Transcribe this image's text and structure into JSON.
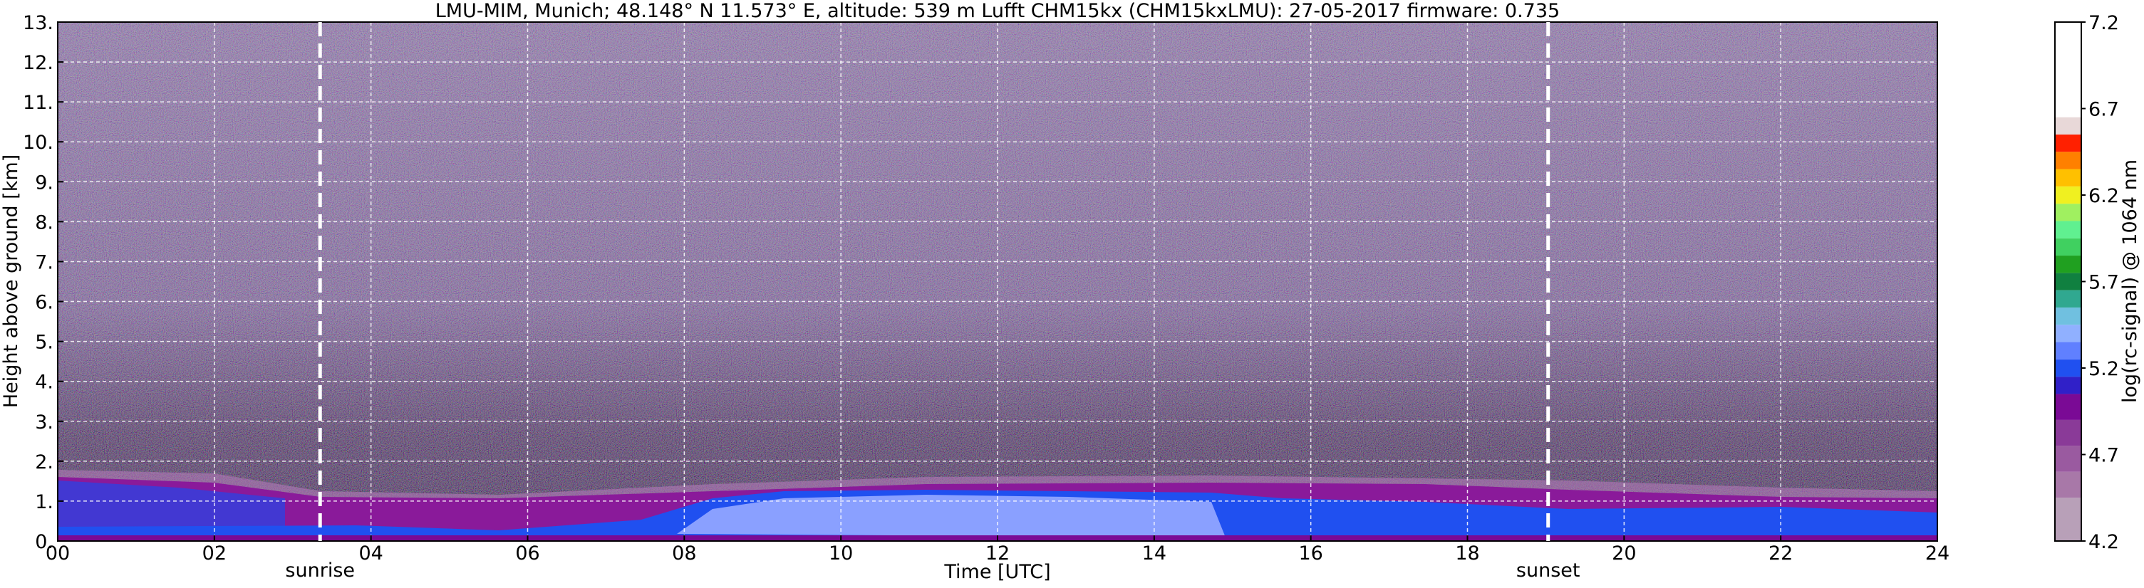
{
  "chart_data": {
    "type": "heatmap",
    "title": "LMU-MIM, Munich; 48.148° N 11.573° E, altitude: 539 m    Lufft CHM15kx (CHM15kxLMU): 27-05-2017    firmware: 0.735",
    "xlabel": "Time [UTC]",
    "ylabel": "Height above ground [km]",
    "xlim": [
      0,
      24
    ],
    "xticks": [
      {
        "value": 0,
        "label": "00"
      },
      {
        "value": 2,
        "label": "02"
      },
      {
        "value": 4,
        "label": "04"
      },
      {
        "value": 6,
        "label": "06"
      },
      {
        "value": 8,
        "label": "08"
      },
      {
        "value": 10,
        "label": "10"
      },
      {
        "value": 12,
        "label": "12"
      },
      {
        "value": 14,
        "label": "14"
      },
      {
        "value": 16,
        "label": "16"
      },
      {
        "value": 18,
        "label": "18"
      },
      {
        "value": 20,
        "label": "20"
      },
      {
        "value": 22,
        "label": "22"
      },
      {
        "value": 24,
        "label": "24"
      }
    ],
    "ylim": [
      0,
      13
    ],
    "yticks": [
      {
        "value": 0,
        "label": "0."
      },
      {
        "value": 1,
        "label": "1."
      },
      {
        "value": 2,
        "label": "2."
      },
      {
        "value": 3,
        "label": "3."
      },
      {
        "value": 4,
        "label": "4."
      },
      {
        "value": 5,
        "label": "5."
      },
      {
        "value": 6,
        "label": "6."
      },
      {
        "value": 7,
        "label": "7."
      },
      {
        "value": 8,
        "label": "8."
      },
      {
        "value": 9,
        "label": "9."
      },
      {
        "value": 10,
        "label": "10."
      },
      {
        "value": 11,
        "label": "11."
      },
      {
        "value": 12,
        "label": "12."
      },
      {
        "value": 13,
        "label": "13."
      }
    ],
    "grid": true,
    "annotations": [
      {
        "text": "sunrise",
        "x": 3.35
      },
      {
        "text": "sunset",
        "x": 19.03
      }
    ],
    "colorbar": {
      "label": "log(rc-signal) @ 1064 nm",
      "lim": [
        4.2,
        7.2
      ],
      "ticks": [
        4.2,
        4.7,
        5.2,
        5.7,
        6.2,
        6.7,
        7.2
      ],
      "levels": [
        4.2,
        4.45,
        4.6,
        4.75,
        4.9,
        5.05,
        5.15,
        5.25,
        5.35,
        5.45,
        5.55,
        5.65,
        5.75,
        5.85,
        5.95,
        6.05,
        6.15,
        6.25,
        6.35,
        6.45,
        6.55,
        6.65,
        7.2
      ],
      "colors": [
        "#b8a0b8",
        "#a878a8",
        "#9a5aa0",
        "#8a3a98",
        "#7a0a95",
        "#3020c8",
        "#2050f0",
        "#6080ff",
        "#90b0ff",
        "#70c0e0",
        "#30a890",
        "#108040",
        "#20a020",
        "#40d060",
        "#60f090",
        "#a0f060",
        "#f0f020",
        "#ffc000",
        "#ff8000",
        "#ff2000",
        "#e8d8d8",
        "#ffffff"
      ]
    }
  }
}
